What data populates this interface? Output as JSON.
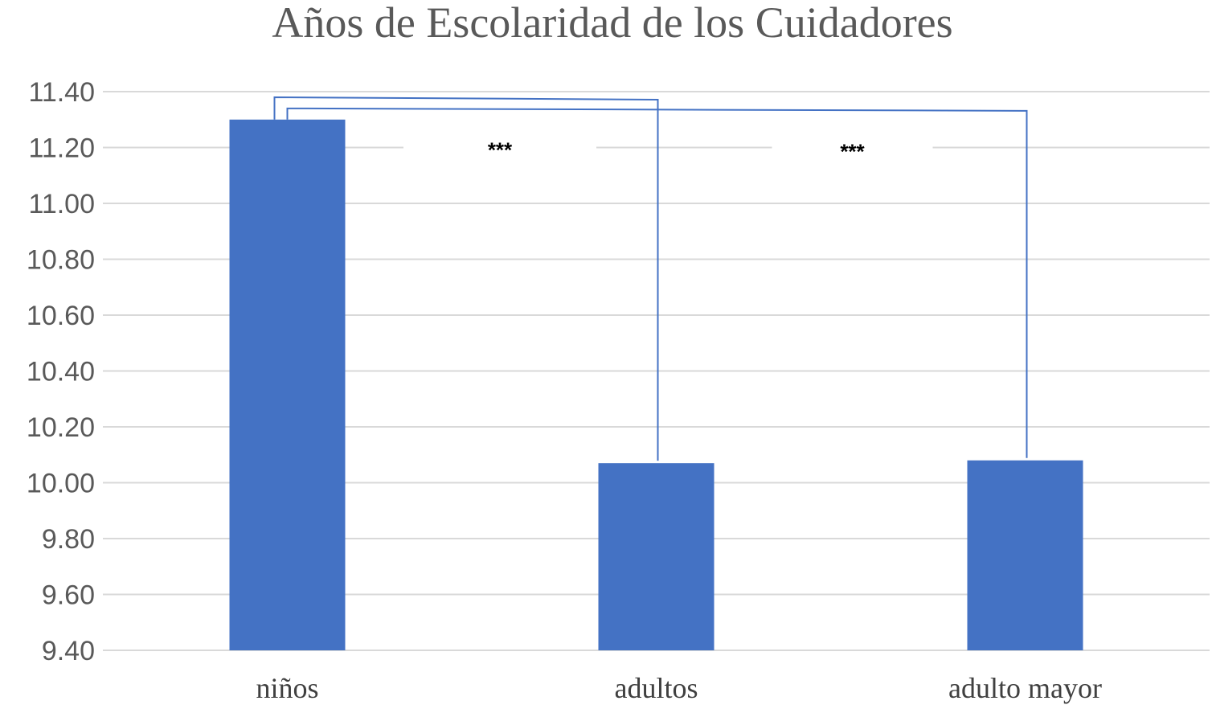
{
  "chart_data": {
    "type": "bar",
    "title": "Años de Escolaridad de los Cuidadores",
    "xlabel": "",
    "ylabel": "",
    "categories": [
      "niños",
      "adultos",
      "adulto mayor"
    ],
    "values": [
      11.3,
      10.07,
      10.08
    ],
    "ylim": [
      9.4,
      11.4
    ],
    "yticks": [
      "9.40",
      "9.60",
      "9.80",
      "10.00",
      "10.20",
      "10.40",
      "10.60",
      "10.80",
      "11.00",
      "11.20",
      "11.40"
    ],
    "grid": true,
    "legend": "none",
    "bar_color": "#4472C4",
    "grid_color": "#D9D9D9",
    "bracket_color": "#4472C4",
    "annotations": [
      {
        "text": "***",
        "from": "niños",
        "to": "adultos"
      },
      {
        "text": "***",
        "from": "niños",
        "to": "adulto mayor"
      }
    ]
  }
}
